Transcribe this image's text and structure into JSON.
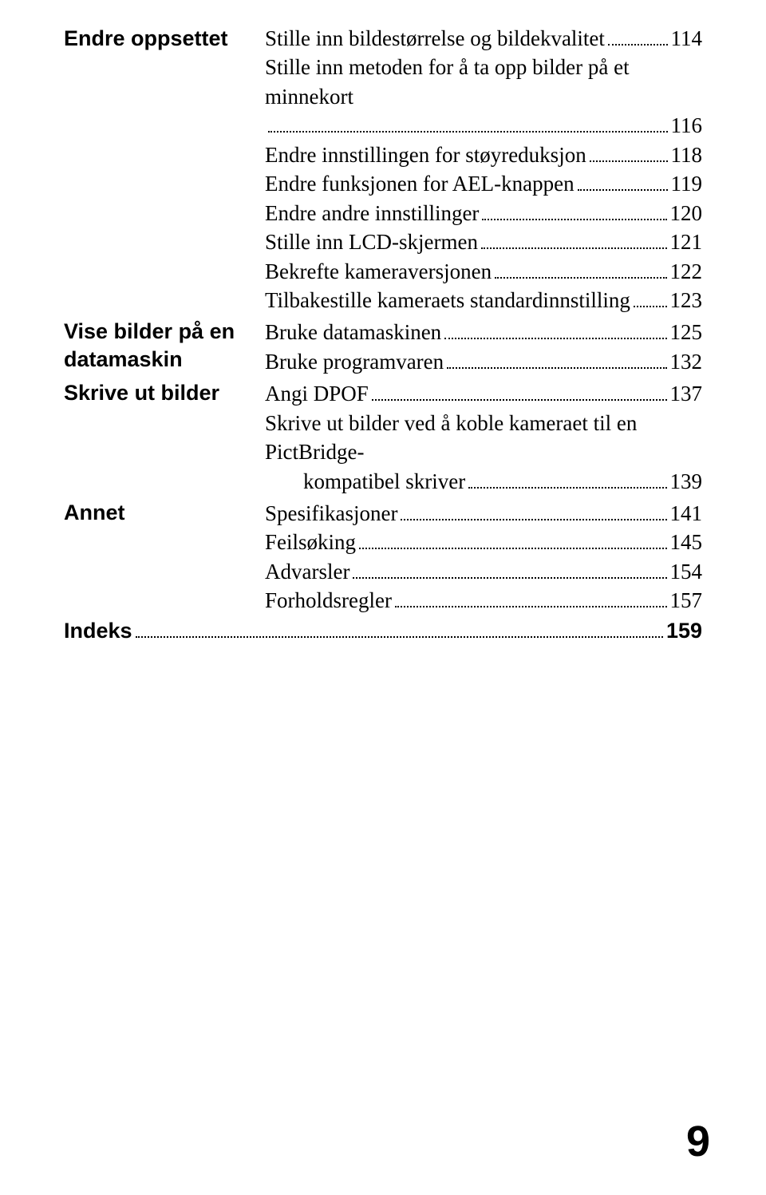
{
  "sections": [
    {
      "label": "Endre oppsettet",
      "entries": [
        {
          "title": "Stille inn bildestørrelse og bildekvalitet",
          "pagenum": "114"
        },
        {
          "title_lines": [
            "Stille inn metoden for å ta opp bilder på et minnekort"
          ],
          "pagenum": "116",
          "wrap": true
        },
        {
          "title": "Endre innstillingen for støyreduksjon",
          "pagenum": "118"
        },
        {
          "title": "Endre funksjonen for AEL-knappen",
          "pagenum": "119"
        },
        {
          "title": "Endre andre innstillinger",
          "pagenum": "120"
        },
        {
          "title": "Stille inn LCD-skjermen",
          "pagenum": "121"
        },
        {
          "title": "Bekrefte kameraversjonen",
          "pagenum": "122"
        },
        {
          "title": "Tilbakestille kameraets standardinnstilling",
          "pagenum": "123"
        }
      ]
    },
    {
      "label": "Vise bilder på en datamaskin",
      "label_lines": [
        "Vise bilder på en",
        "datamaskin"
      ],
      "entries": [
        {
          "title": "Bruke datamaskinen",
          "pagenum": "125"
        },
        {
          "title": "Bruke programvaren",
          "pagenum": "132"
        }
      ]
    },
    {
      "label": "Skrive ut bilder",
      "entries": [
        {
          "title": "Angi DPOF",
          "pagenum": "137"
        },
        {
          "title_lines": [
            "Skrive ut bilder ved å koble kameraet til en PictBridge-",
            "kompatibel skriver"
          ],
          "pagenum": "139",
          "wrap": true,
          "indent_second": true
        }
      ]
    },
    {
      "label": "Annet",
      "entries": [
        {
          "title": "Spesifikasjoner",
          "pagenum": "141"
        },
        {
          "title": "Feilsøking",
          "pagenum": "145"
        },
        {
          "title": "Advarsler",
          "pagenum": "154"
        },
        {
          "title": "Forholdsregler",
          "pagenum": "157"
        }
      ]
    }
  ],
  "indeks": {
    "label": "Indeks",
    "pagenum": "159"
  },
  "page_number": "9",
  "colors": {
    "text": "#000000",
    "background": "#ffffff"
  },
  "typography": {
    "body_font": "Times New Roman",
    "heading_font": "Arial",
    "body_size_pt": 20,
    "heading_size_pt": 20,
    "page_number_size_pt": 40
  }
}
